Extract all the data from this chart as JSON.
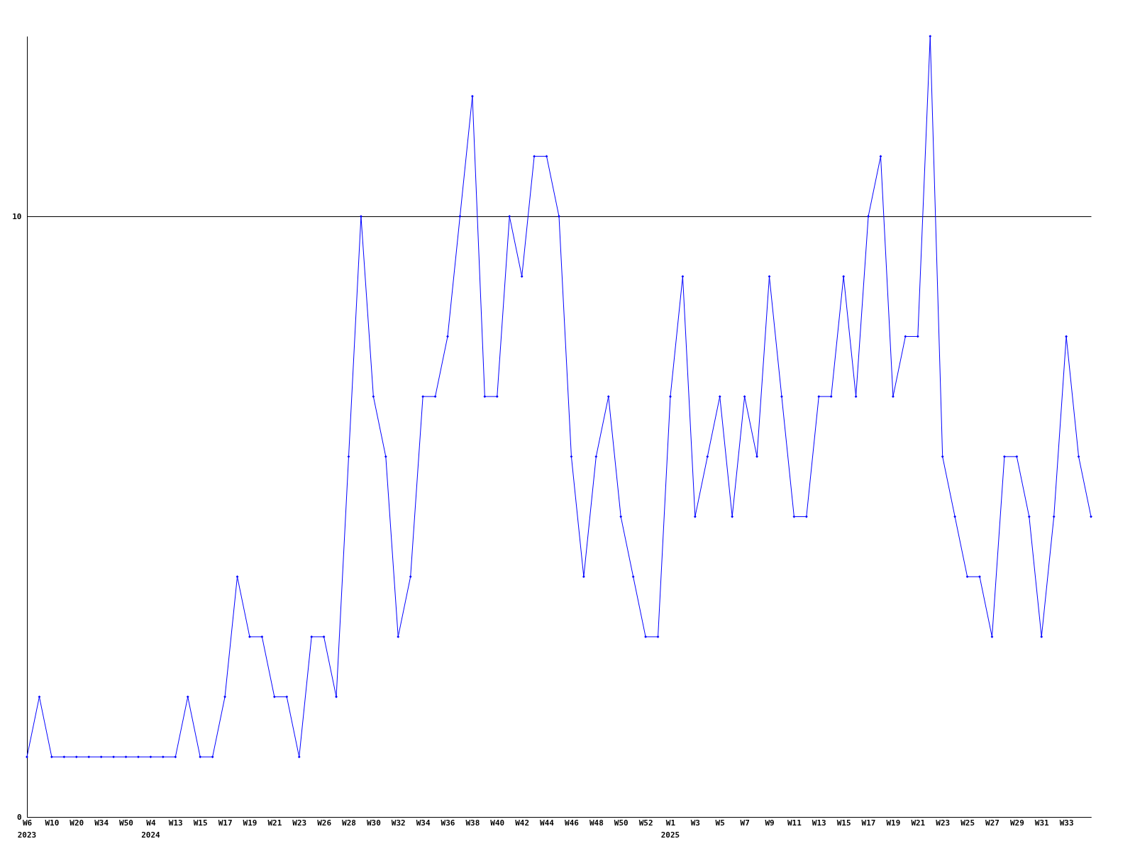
{
  "chart_data": {
    "type": "line",
    "categories": [
      "W6",
      null,
      "W10",
      null,
      "W20",
      null,
      "W34",
      null,
      "W50",
      null,
      "W4",
      null,
      "W13",
      null,
      "W15",
      null,
      "W17",
      null,
      "W19",
      null,
      "W21",
      null,
      "W23",
      null,
      "W26",
      null,
      "W28",
      null,
      "W30",
      null,
      "W32",
      null,
      "W34",
      null,
      "W36",
      null,
      "W38",
      null,
      "W40",
      null,
      "W42",
      null,
      "W44",
      null,
      "W46",
      null,
      "W48",
      null,
      "W50",
      null,
      "W52",
      null,
      "W1",
      null,
      "W3",
      null,
      "W5",
      null,
      "W7",
      null,
      "W9",
      null,
      "W11",
      null,
      "W13",
      null,
      "W15",
      null,
      "W17",
      null,
      "W19",
      null,
      "W21",
      null,
      "W23",
      null,
      "W25",
      null,
      "W27",
      null,
      "W29",
      null,
      "W31",
      null,
      "W33",
      null,
      null
    ],
    "series": [
      {
        "color": "#0000ff",
        "values": [
          1,
          2,
          1,
          1,
          1,
          1,
          1,
          1,
          1,
          1,
          1,
          1,
          1,
          2,
          1,
          1,
          2,
          4,
          3,
          3,
          2,
          2,
          1,
          3,
          3,
          2,
          6,
          10,
          7,
          6,
          3,
          4,
          7,
          7,
          8,
          10,
          12,
          7,
          7,
          10,
          9,
          11,
          11,
          10,
          6,
          4,
          6,
          7,
          5,
          4,
          3,
          3,
          7,
          9,
          5,
          6,
          7,
          5,
          7,
          6,
          9,
          7,
          5,
          5,
          7,
          7,
          9,
          7,
          10,
          11,
          7,
          8,
          8,
          13,
          6,
          5,
          4,
          4,
          3,
          6,
          6,
          5,
          3,
          5,
          8,
          6,
          5
        ]
      }
    ],
    "ylim": [
      0,
      13
    ],
    "yticks": [
      {
        "value": 0,
        "label": "0"
      },
      {
        "value": 10,
        "label": "10"
      }
    ],
    "grid": "y",
    "marker": "diamond",
    "line_style": "solid",
    "annotations": [
      "2023",
      "2024",
      "2025"
    ]
  }
}
